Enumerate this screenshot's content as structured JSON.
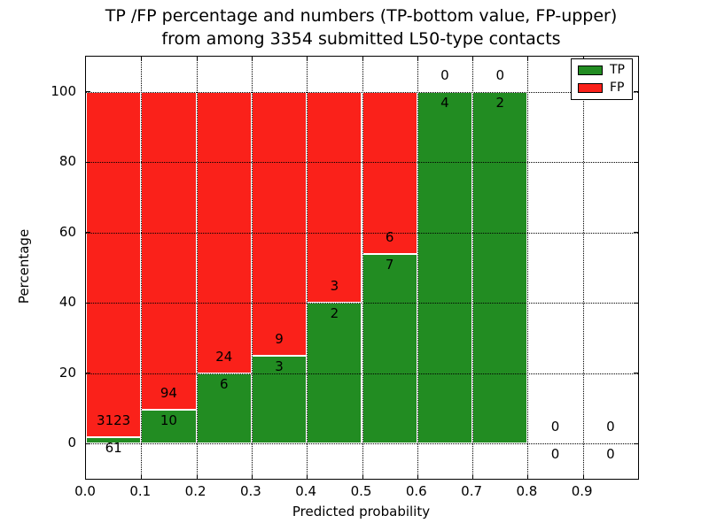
{
  "figure": {
    "title_line1": "TP /FP percentage and numbers (TP-bottom value, FP-upper)",
    "title_line2": "from among 3354 submitted L50-type contacts",
    "xlabel": "Predicted probability",
    "ylabel": "Percentage"
  },
  "chart_data": {
    "type": "bar",
    "stacked": true,
    "title": "TP /FP percentage and numbers (TP-bottom value, FP-upper) from among 3354 submitted L50-type contacts",
    "total_submitted": 3354,
    "xlabel": "Predicted probability",
    "ylabel": "Percentage",
    "xlim": [
      0.0,
      1.0
    ],
    "ylim": [
      -10,
      110
    ],
    "bin_width": 0.1,
    "bin_starts": [
      0.0,
      0.1,
      0.2,
      0.3,
      0.4,
      0.5,
      0.6,
      0.7,
      0.8,
      0.9
    ],
    "series": [
      {
        "name": "TP",
        "color": "#228c22",
        "counts": [
          61,
          10,
          6,
          3,
          2,
          7,
          4,
          2,
          0,
          0
        ]
      },
      {
        "name": "FP",
        "color": "#fa211a",
        "counts": [
          3123,
          94,
          24,
          9,
          3,
          6,
          0,
          0,
          0,
          0
        ]
      }
    ],
    "tp_percent": [
      1.92,
      9.62,
      20.0,
      25.0,
      40.0,
      53.85,
      100.0,
      100.0,
      0.0,
      0.0
    ],
    "bar_edge_color": "#ffffff",
    "xticks": [
      0.0,
      0.1,
      0.2,
      0.3,
      0.4,
      0.5,
      0.6,
      0.7,
      0.8,
      0.9
    ],
    "yticks": [
      0,
      20,
      40,
      60,
      80,
      100
    ],
    "grid": "dotted",
    "legend": {
      "position": "upper right",
      "entries": [
        "TP",
        "FP"
      ]
    }
  }
}
